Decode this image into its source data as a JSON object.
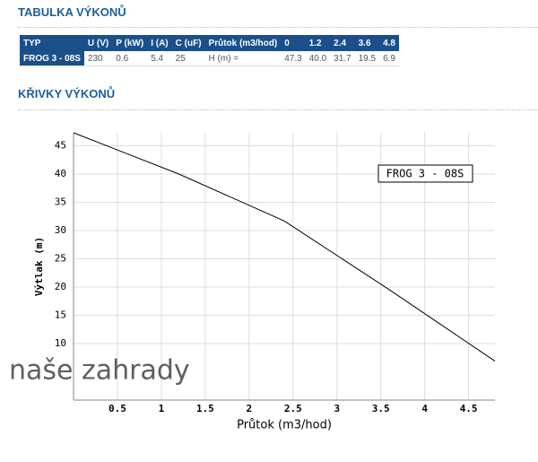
{
  "sections": [
    "TABULKA VÝKONŮ",
    "KŘIVKY VÝKONŮ"
  ],
  "table": {
    "header": [
      "TYP",
      "U (V)",
      "P (kW)",
      "I (A)",
      "C (uF)",
      "Průtok (m3/hod)",
      "0",
      "1.2",
      "2.4",
      "3.6",
      "4.8"
    ],
    "rows": [
      [
        "FROG 3 - 08S",
        "230",
        "0.6",
        "5.4",
        "25",
        "H (m) =",
        "47.3",
        "40.0",
        "31.7",
        "19.5",
        "6.9"
      ]
    ]
  },
  "watermark": "naše zahrady",
  "chart_data": {
    "type": "line",
    "x_label": "Průtok (m3/hod)",
    "y_label": "Výtlak (m)",
    "x": [
      0,
      1.2,
      2.4,
      3.6,
      4.8
    ],
    "series": [
      {
        "name": "FROG 3 - 08S",
        "color": "#000000",
        "values": [
          47.3,
          40.0,
          31.7,
          19.5,
          6.9
        ]
      }
    ],
    "xlim": [
      0,
      4.8
    ],
    "ylim": [
      0,
      47.3
    ],
    "xticks": [
      0.5,
      1,
      1.5,
      2,
      2.5,
      3,
      3.5,
      4,
      4.5
    ],
    "yticks": [
      10,
      15,
      20,
      25,
      30,
      35,
      40,
      45
    ],
    "grid": true,
    "legend": "upper right"
  }
}
